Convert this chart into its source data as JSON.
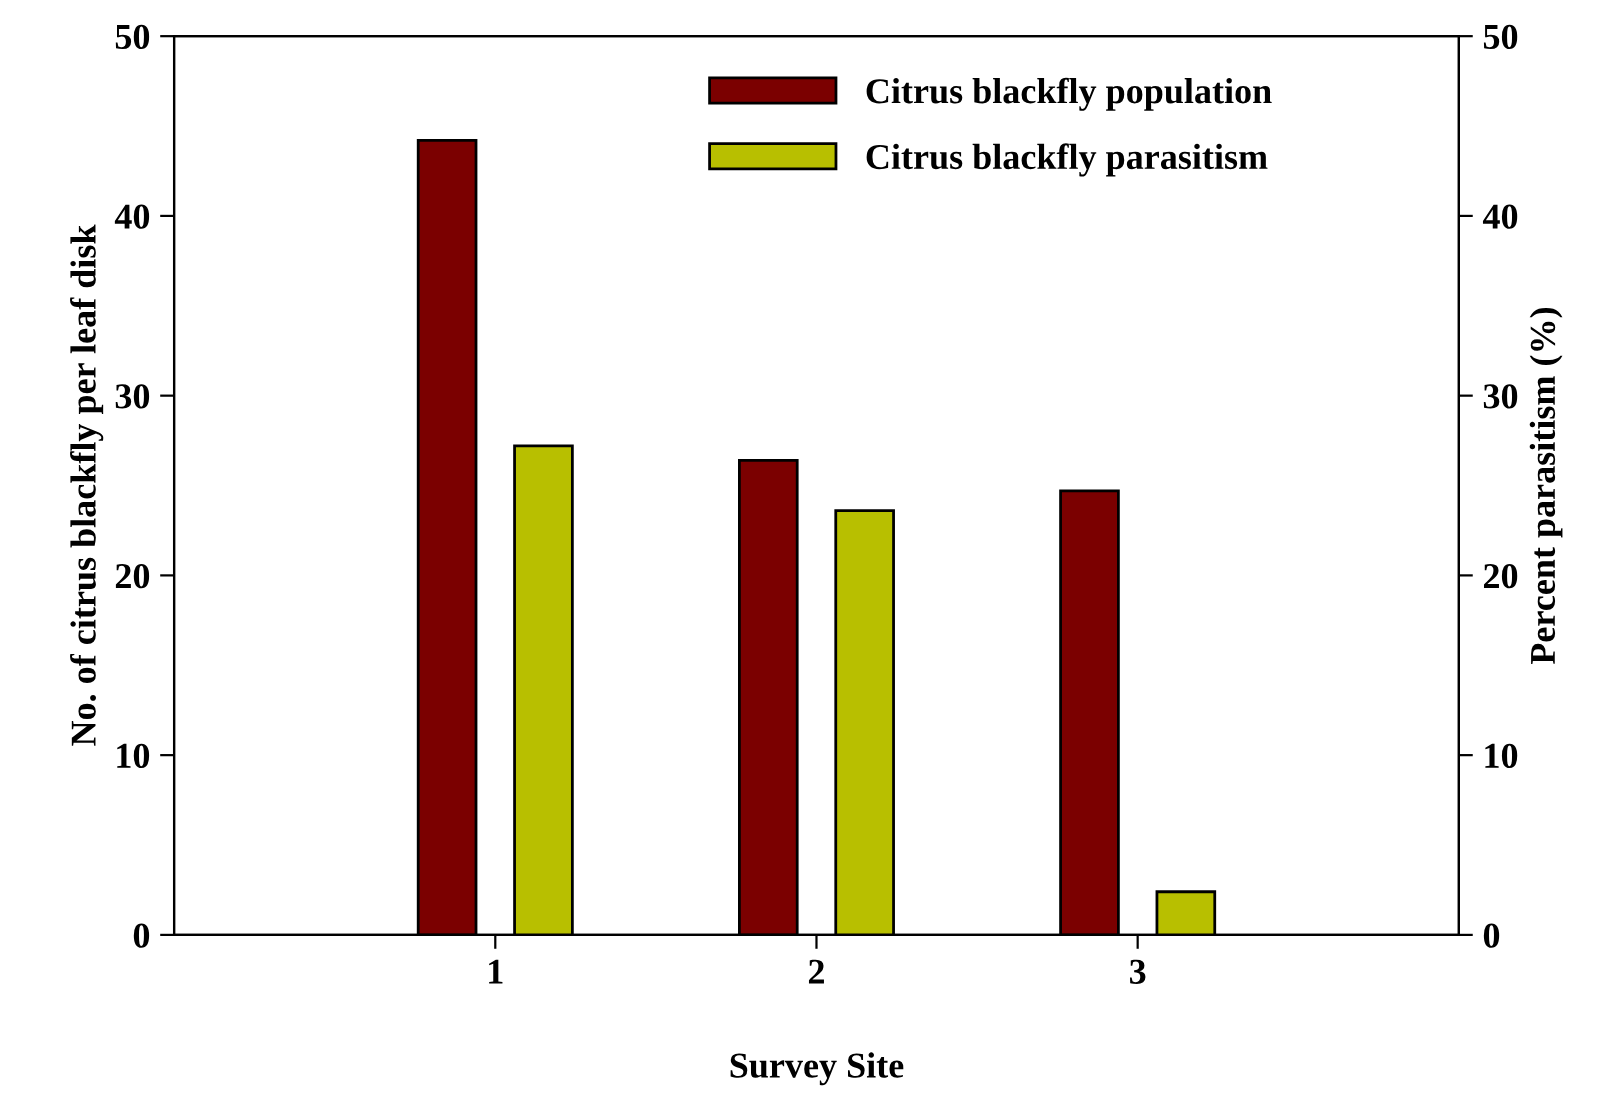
{
  "chart_data": {
    "type": "bar",
    "xlabel": "Survey Site",
    "ylabel": "No. of citrus blackfly per leaf disk",
    "y2label": "Percent parasitism (%)",
    "x": [
      1,
      2,
      3
    ],
    "xlim": [
      0,
      4
    ],
    "xticks": [
      1,
      2,
      3
    ],
    "ylim": [
      0,
      50
    ],
    "yticks": [
      0,
      10,
      20,
      30,
      40,
      50
    ],
    "y2lim": [
      0,
      50
    ],
    "y2ticks": [
      0,
      10,
      20,
      30,
      40,
      50
    ],
    "series": [
      {
        "name": "Citrus blackfly population",
        "color": "#7b0000",
        "values": [
          44.2,
          26.4,
          24.7
        ]
      },
      {
        "name": "Citrus blackfly parasitism",
        "color": "#b8bf00",
        "values": [
          27.2,
          23.6,
          2.4
        ],
        "axis": "y2"
      }
    ],
    "legend": "top right",
    "grid": false
  }
}
